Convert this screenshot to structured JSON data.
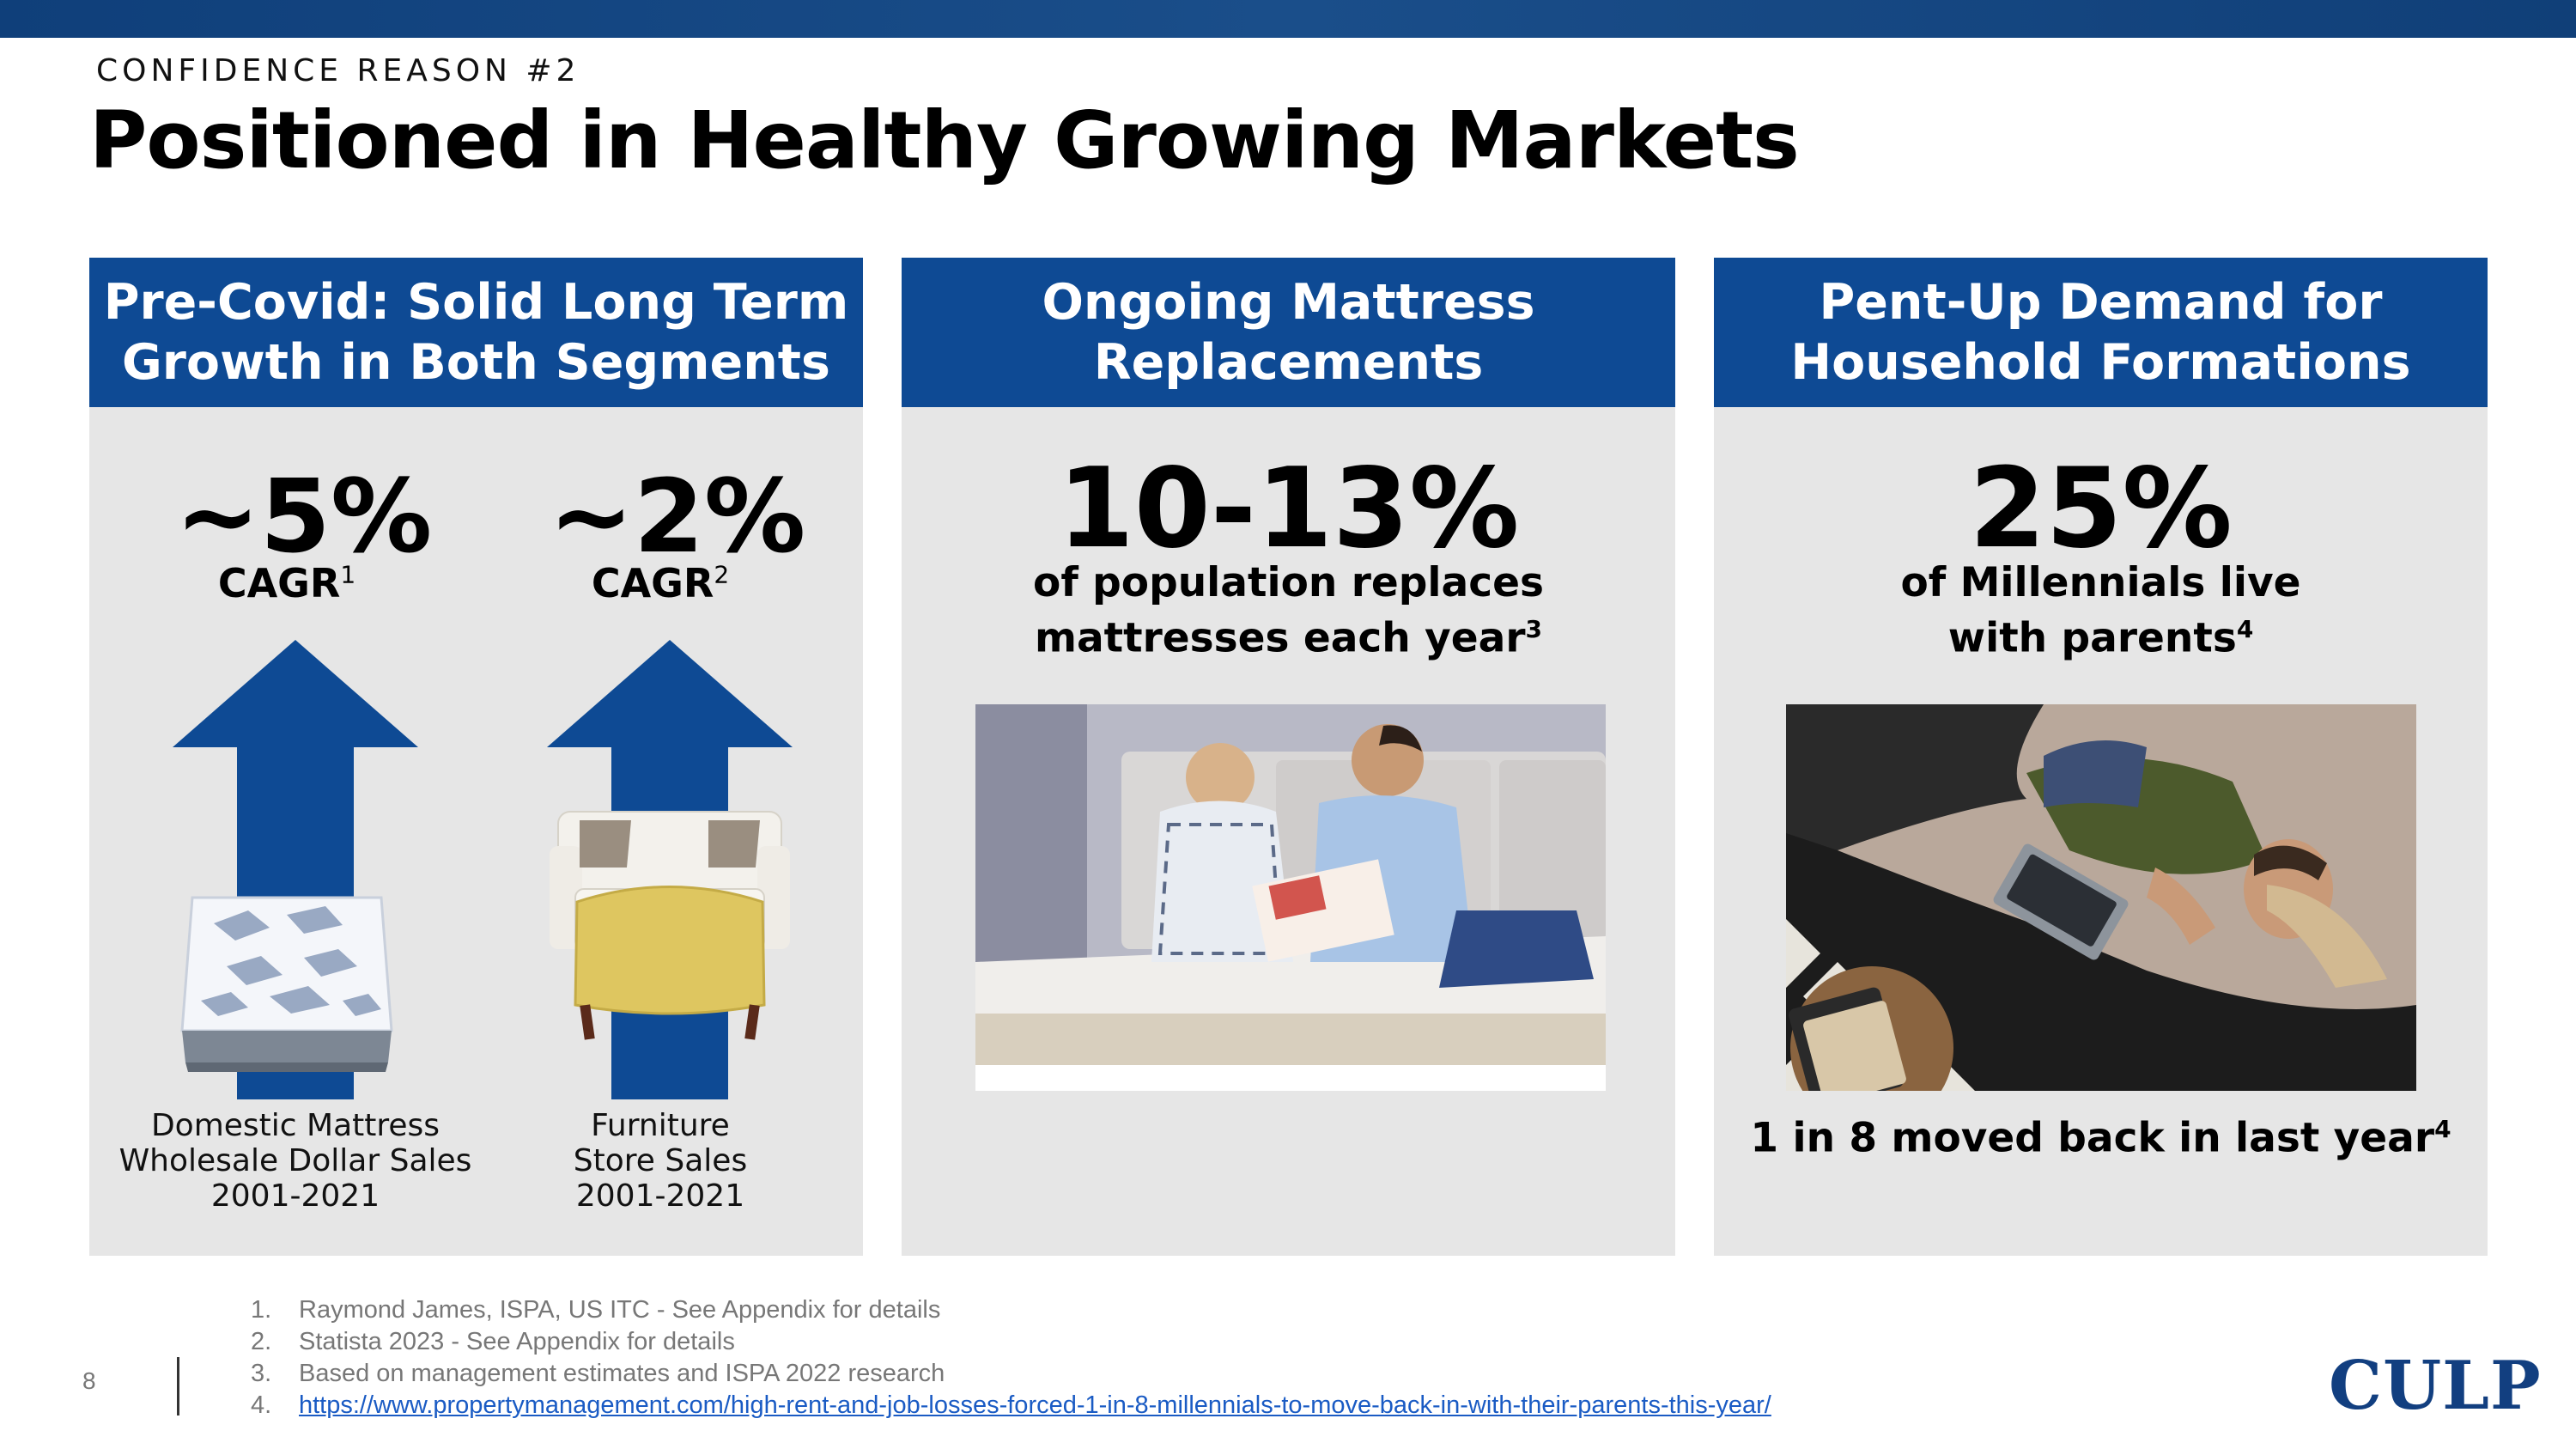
{
  "header": {
    "eyebrow": "CONFIDENCE REASON #2",
    "title": "Positioned in Healthy Growing Markets"
  },
  "panels": [
    {
      "heading_line1": "Pre-Covid: Solid Long Term",
      "heading_line2": "Growth in Both Segments",
      "stats": [
        {
          "value": "~5%",
          "label": "CAGR",
          "note": "1",
          "caption_lines": [
            "Domestic Mattress",
            "Wholesale Dollar Sales",
            "2001-2021"
          ],
          "image_icon": "mattress-image"
        },
        {
          "value": "~2%",
          "label": "CAGR",
          "note": "2",
          "caption_lines": [
            "Furniture",
            "Store Sales",
            "2001-2021"
          ],
          "image_icon": "sofa-ottoman-image"
        }
      ]
    },
    {
      "heading_line1": "Ongoing Mattress",
      "heading_line2": "Replacements",
      "value": "10-13%",
      "line1": "of population replaces",
      "line2": "mattresses each year",
      "note": "3",
      "image_icon": "couple-on-mattress-photo"
    },
    {
      "heading_line1": "Pent-Up Demand for",
      "heading_line2": "Household Formations",
      "value": "25%",
      "line1": "of Millennials live",
      "line2": "with parents",
      "note": "4",
      "caption": "1 in 8 moved back in last year",
      "caption_note": "4",
      "image_icon": "man-sleeping-on-couch-photo"
    }
  ],
  "footnotes": [
    {
      "num": "1.",
      "text": "Raymond James, ISPA, US ITC - See Appendix for details"
    },
    {
      "num": "2.",
      "text": "Statista 2023 - See Appendix for details"
    },
    {
      "num": "3.",
      "text": "Based on management estimates and ISPA 2022 research"
    },
    {
      "num": "4.",
      "text": "https://www.propertymanagement.com/high-rent-and-job-losses-forced-1-in-8-millennials-to-move-back-in-with-their-parents-this-year/"
    }
  ],
  "page_number": "8",
  "logo": "CULP",
  "colors": {
    "brand_blue": "#0e4a94",
    "panel_gray": "#e6e6e6",
    "link": "#1a5bc4"
  }
}
